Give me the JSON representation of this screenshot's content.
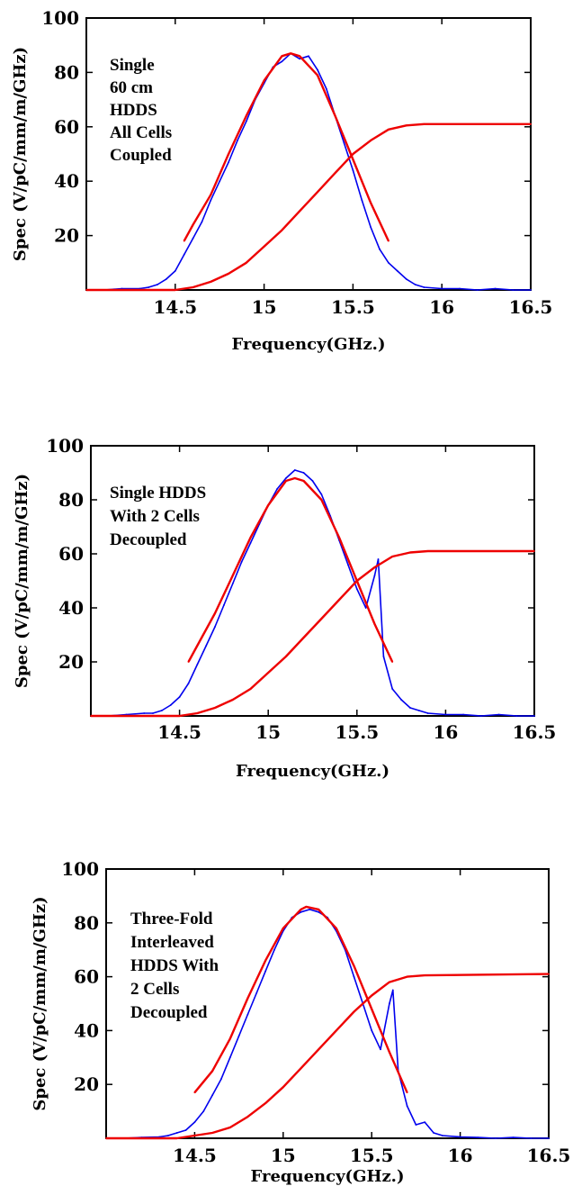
{
  "chart_data": [
    {
      "type": "line",
      "xlabel": "Frequency(GHz.)",
      "ylabel": "Spec (V/pC/mm/m/GHz)",
      "xlim": [
        14.0,
        16.5
      ],
      "ylim": [
        0,
        100
      ],
      "xticks": [
        "14.5",
        "15",
        "15.5",
        "16",
        "16.5"
      ],
      "yticks": [
        "20",
        "40",
        "60",
        "80",
        "100"
      ],
      "annotation": [
        "Single",
        "60 cm",
        "HDDS",
        "All Cells",
        "Coupled"
      ],
      "colors": {
        "spectrum": "#0000ee",
        "fit": "#ee0000"
      },
      "series": [
        {
          "color": "#0000ee",
          "x": [
            14.1,
            14.2,
            14.3,
            14.35,
            14.4,
            14.45,
            14.5,
            14.55,
            14.6,
            14.65,
            14.7,
            14.75,
            14.8,
            14.85,
            14.9,
            14.95,
            15.0,
            15.05,
            15.1,
            15.15,
            15.2,
            15.25,
            15.3,
            15.35,
            15.4,
            15.45,
            15.5,
            15.55,
            15.6,
            15.65,
            15.7,
            15.75,
            15.8,
            15.85,
            15.9,
            16.0,
            16.1,
            16.2,
            16.3,
            16.4,
            16.5
          ],
          "y": [
            0,
            0.5,
            0.5,
            1,
            2,
            4,
            7,
            13,
            19,
            25,
            33,
            40,
            47,
            55,
            62,
            70,
            76,
            82,
            84,
            87,
            85,
            86,
            81,
            74,
            64,
            54,
            44,
            33,
            23,
            15,
            10,
            7,
            4,
            2,
            1,
            0.5,
            0.5,
            0,
            0.5,
            0,
            0
          ]
        },
        {
          "color": "#ee0000",
          "x": [
            14.55,
            14.6,
            14.7,
            14.8,
            14.9,
            15.0,
            15.1,
            15.15,
            15.2,
            15.3,
            15.4,
            15.5,
            15.6,
            15.7
          ],
          "y": [
            18,
            24,
            35,
            50,
            64,
            77,
            86,
            87,
            86,
            79,
            64,
            48,
            32,
            18
          ]
        },
        {
          "color": "#ee0000",
          "x": [
            14.0,
            14.5,
            14.6,
            14.7,
            14.8,
            14.9,
            15.0,
            15.1,
            15.2,
            15.3,
            15.4,
            15.5,
            15.6,
            15.7,
            15.8,
            15.9,
            16.5
          ],
          "y": [
            0,
            0,
            1,
            3,
            6,
            10,
            16,
            22,
            29,
            36,
            43,
            50,
            55,
            59,
            60.5,
            61,
            61
          ]
        }
      ]
    },
    {
      "type": "line",
      "xlabel": "Frequency(GHz.)",
      "ylabel": "Spec (V/pC/mm/m/GHz)",
      "xlim": [
        14.0,
        16.5
      ],
      "ylim": [
        0,
        100
      ],
      "xticks": [
        "14.5",
        "15",
        "15.5",
        "16",
        "16.5"
      ],
      "yticks": [
        "20",
        "40",
        "60",
        "80",
        "100"
      ],
      "annotation": [
        "Single HDDS",
        "With 2 Cells",
        "Decoupled"
      ],
      "colors": {
        "spectrum": "#0000ee",
        "fit": "#ee0000"
      },
      "series": [
        {
          "color": "#0000ee",
          "x": [
            14.1,
            14.2,
            14.3,
            14.35,
            14.4,
            14.45,
            14.5,
            14.55,
            14.6,
            14.65,
            14.7,
            14.75,
            14.8,
            14.85,
            14.9,
            14.95,
            15.0,
            15.05,
            15.1,
            15.15,
            15.2,
            15.25,
            15.3,
            15.35,
            15.4,
            15.45,
            15.5,
            15.55,
            15.6,
            15.62,
            15.65,
            15.7,
            15.75,
            15.8,
            15.85,
            15.9,
            16.0,
            16.1,
            16.2,
            16.3,
            16.4,
            16.5
          ],
          "y": [
            0,
            0.5,
            1,
            1,
            2,
            4,
            7,
            12,
            19,
            26,
            33,
            41,
            49,
            57,
            64,
            71,
            78,
            84,
            88,
            91,
            90,
            87,
            82,
            74,
            65,
            56,
            47,
            40,
            52,
            58,
            22,
            10,
            6,
            3,
            2,
            1,
            0.5,
            0.5,
            0,
            0.5,
            0,
            0
          ]
        },
        {
          "color": "#ee0000",
          "x": [
            14.55,
            14.6,
            14.7,
            14.8,
            14.9,
            15.0,
            15.1,
            15.15,
            15.2,
            15.3,
            15.4,
            15.5,
            15.6,
            15.7
          ],
          "y": [
            20,
            26,
            38,
            52,
            66,
            78,
            87,
            88,
            87,
            80,
            66,
            50,
            34,
            20
          ]
        },
        {
          "color": "#ee0000",
          "x": [
            14.0,
            14.5,
            14.6,
            14.7,
            14.8,
            14.9,
            15.0,
            15.1,
            15.2,
            15.3,
            15.4,
            15.5,
            15.6,
            15.7,
            15.8,
            15.9,
            16.5
          ],
          "y": [
            0,
            0,
            1,
            3,
            6,
            10,
            16,
            22,
            29,
            36,
            43,
            50,
            55,
            59,
            60.5,
            61,
            61
          ]
        }
      ]
    },
    {
      "type": "line",
      "xlabel": "Frequency(GHz.)",
      "ylabel": "Spec (V/pC/mm/m/GHz)",
      "xlim": [
        14.0,
        16.5
      ],
      "ylim": [
        0,
        100
      ],
      "xticks": [
        "14.5",
        "15",
        "15.5",
        "16",
        "16.5"
      ],
      "yticks": [
        "20",
        "40",
        "60",
        "80",
        "100"
      ],
      "annotation": [
        "Three-Fold",
        "Interleaved",
        "HDDS With",
        "2 Cells",
        "Decoupled"
      ],
      "colors": {
        "spectrum": "#0000ee",
        "fit": "#ee0000"
      },
      "series": [
        {
          "color": "#0000ee",
          "x": [
            14.1,
            14.2,
            14.3,
            14.35,
            14.4,
            14.45,
            14.5,
            14.55,
            14.6,
            14.65,
            14.7,
            14.75,
            14.8,
            14.85,
            14.9,
            14.95,
            15.0,
            15.05,
            15.1,
            15.15,
            15.2,
            15.25,
            15.3,
            15.35,
            15.4,
            15.45,
            15.5,
            15.55,
            15.6,
            15.62,
            15.65,
            15.7,
            15.75,
            15.8,
            15.85,
            15.9,
            16.0,
            16.1,
            16.2,
            16.3,
            16.4,
            16.5
          ],
          "y": [
            0,
            0.3,
            0.5,
            1,
            2,
            3,
            6,
            10,
            16,
            22,
            30,
            38,
            46,
            54,
            62,
            70,
            77,
            82,
            84,
            85,
            84,
            82,
            77,
            70,
            60,
            50,
            40,
            33,
            50,
            55,
            25,
            12,
            5,
            6,
            2,
            1,
            0.5,
            0.3,
            0,
            0.3,
            0,
            0
          ]
        },
        {
          "color": "#ee0000",
          "x": [
            14.5,
            14.6,
            14.7,
            14.8,
            14.9,
            15.0,
            15.1,
            15.13,
            15.2,
            15.3,
            15.4,
            15.5,
            15.6,
            15.7
          ],
          "y": [
            17,
            25,
            37,
            52,
            66,
            78,
            85,
            86,
            85,
            78,
            64,
            48,
            32,
            17
          ]
        },
        {
          "color": "#ee0000",
          "x": [
            14.0,
            14.4,
            14.5,
            14.6,
            14.7,
            14.8,
            14.9,
            15.0,
            15.1,
            15.2,
            15.3,
            15.4,
            15.5,
            15.6,
            15.7,
            15.8,
            16.5
          ],
          "y": [
            0,
            0,
            1,
            2,
            4,
            8,
            13,
            19,
            26,
            33,
            40,
            47,
            53,
            58,
            60,
            60.5,
            61
          ]
        }
      ]
    }
  ]
}
